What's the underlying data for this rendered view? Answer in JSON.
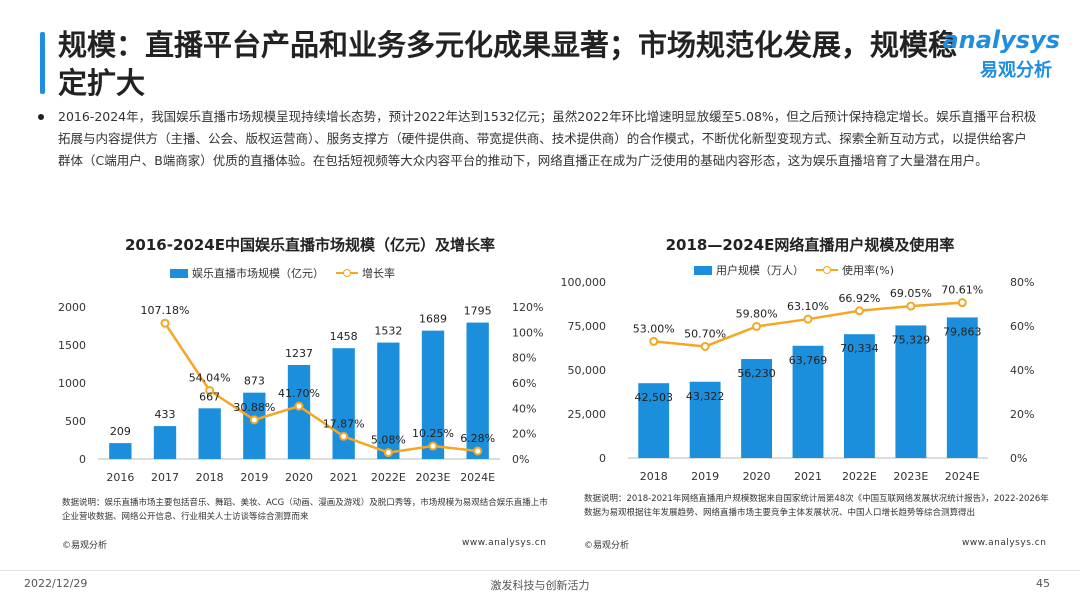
{
  "title": "规模：直播平台产品和业务多元化成果显著；市场规范化发展，规模稳定扩大",
  "logo": {
    "en": "analysys",
    "cn": "易观分析"
  },
  "bullet": "2016-2024年，我国娱乐直播市场规模呈现持续增长态势，预计2022年达到1532亿元；虽然2022年环比增速明显放缓至5.08%，但之后预计保持稳定增长。娱乐直播平台积极拓展与内容提供方（主播、公会、版权运营商）、服务支撑方（硬件提供商、带宽提供商、技术提供商）的合作模式，不断优化新型变现方式、探索全新互动方式，以提供给客户群体（C端用户、B端商家）优质的直播体验。在包括短视频等大众内容平台的推动下，网络直播正在成为广泛使用的基础内容形态，这为娱乐直播培育了大量潜在用户。",
  "colors": {
    "bar": "#1b8fdb",
    "line": "#f5a623",
    "accent": "#1f8ee0"
  },
  "chart_data": [
    {
      "type": "bar",
      "title": "2016-2024E中国娱乐直播市场规模（亿元）及增长率",
      "categories": [
        "2016",
        "2017",
        "2018",
        "2019",
        "2020",
        "2021",
        "2022E",
        "2023E",
        "2024E"
      ],
      "series": [
        {
          "name": "娱乐直播市场规模（亿元）",
          "type": "bar",
          "axis": "left",
          "values": [
            209,
            433,
            667,
            873,
            1237,
            1458,
            1532,
            1689,
            1795
          ],
          "labels": [
            "209",
            "433",
            "667",
            "873",
            "1237",
            "1458",
            "1532",
            "1689",
            "1795"
          ]
        },
        {
          "name": "增长率",
          "type": "line",
          "axis": "right",
          "values": [
            null,
            107.18,
            54.04,
            30.88,
            41.7,
            17.87,
            5.08,
            10.25,
            6.28
          ],
          "labels": [
            "",
            "107.18%",
            "54.04%",
            "30.88%",
            "41.70%",
            "17.87%",
            "5.08%",
            "10.25%",
            "6.28%"
          ]
        }
      ],
      "left_axis": {
        "min": 0,
        "max": 2000,
        "ticks": [
          0,
          500,
          1000,
          1500,
          2000
        ],
        "tick_labels": [
          "0",
          "500",
          "1000",
          "1500",
          "2000"
        ]
      },
      "right_axis": {
        "min": 0,
        "max": 120,
        "ticks": [
          0,
          20,
          40,
          60,
          80,
          100,
          120
        ],
        "tick_labels": [
          "0%",
          "20%",
          "40%",
          "60%",
          "80%",
          "100%",
          "120%"
        ]
      },
      "legend_position": "top-center",
      "grid": false
    },
    {
      "type": "bar",
      "title": "2018—2024E网络直播用户规模及使用率",
      "categories": [
        "2018",
        "2019",
        "2020",
        "2021",
        "2022E",
        "2023E",
        "2024E"
      ],
      "series": [
        {
          "name": "用户规模（万人）",
          "type": "bar",
          "axis": "left",
          "values": [
            42503,
            43322,
            56230,
            63769,
            70334,
            75329,
            79863
          ],
          "labels": [
            "42,503",
            "43,322",
            "56,230",
            "63,769",
            "70,334",
            "75,329",
            "79,863"
          ]
        },
        {
          "name": "使用率(%)",
          "type": "line",
          "axis": "right",
          "values": [
            53.0,
            50.7,
            59.8,
            63.1,
            66.92,
            69.05,
            70.61
          ],
          "labels": [
            "53.00%",
            "50.70%",
            "59.80%",
            "63.10%",
            "66.92%",
            "69.05%",
            "70.61%"
          ]
        }
      ],
      "left_axis": {
        "min": 0,
        "max": 100000,
        "ticks": [
          0,
          25000,
          50000,
          75000,
          100000
        ],
        "tick_labels": [
          "0",
          "25,000",
          "50,000",
          "75,000",
          "100,000"
        ]
      },
      "right_axis": {
        "min": 0,
        "max": 80,
        "ticks": [
          0,
          20,
          40,
          60,
          80
        ],
        "tick_labels": [
          "0%",
          "20%",
          "40%",
          "60%",
          "80%"
        ]
      },
      "legend_position": "top-center",
      "grid": false
    }
  ],
  "notes": {
    "left": "数据说明：娱乐直播市场主要包括音乐、舞蹈、美妆、ACG（动画、漫画及游戏）及脱口秀等，市场规模为易观结合娱乐直播上市企业营收数据、网络公开信息、行业相关人士访谈等综合测算而来",
    "right": "数据说明：2018-2021年网络直播用户规模数据来自国家统计局第48次《中国互联网络发展状况统计报告》，2022-2026年数据为易观根据往年发展趋势、网络直播市场主要竞争主体发展状况、中国人口增长趋势等综合测算得出",
    "source": "©易观分析",
    "website": "www.analysys.cn"
  },
  "footer": {
    "date": "2022/12/29",
    "slogan": "激发科技与创新活力",
    "page": "45"
  }
}
